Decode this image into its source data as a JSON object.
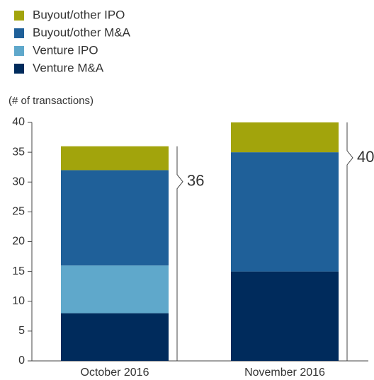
{
  "chart_data": {
    "type": "stacked_bar",
    "ylabel": "(# of transactions)",
    "categories": [
      "October 2016",
      "November 2016"
    ],
    "series": [
      {
        "name": "Buyout/other IPO",
        "color": "#a2a40c",
        "values": [
          4,
          5
        ]
      },
      {
        "name": "Buyout/other M&A",
        "color": "#1f6099",
        "values": [
          16,
          20
        ]
      },
      {
        "name": "Venture IPO",
        "color": "#5fa8cb",
        "values": [
          8,
          0
        ]
      },
      {
        "name": "Venture M&A",
        "color": "#002b5c",
        "values": [
          8,
          15
        ]
      }
    ],
    "totals": [
      36,
      40
    ],
    "ylim": [
      0,
      40
    ],
    "yticks": [
      0,
      5,
      10,
      15,
      20,
      25,
      30,
      35,
      40
    ]
  }
}
